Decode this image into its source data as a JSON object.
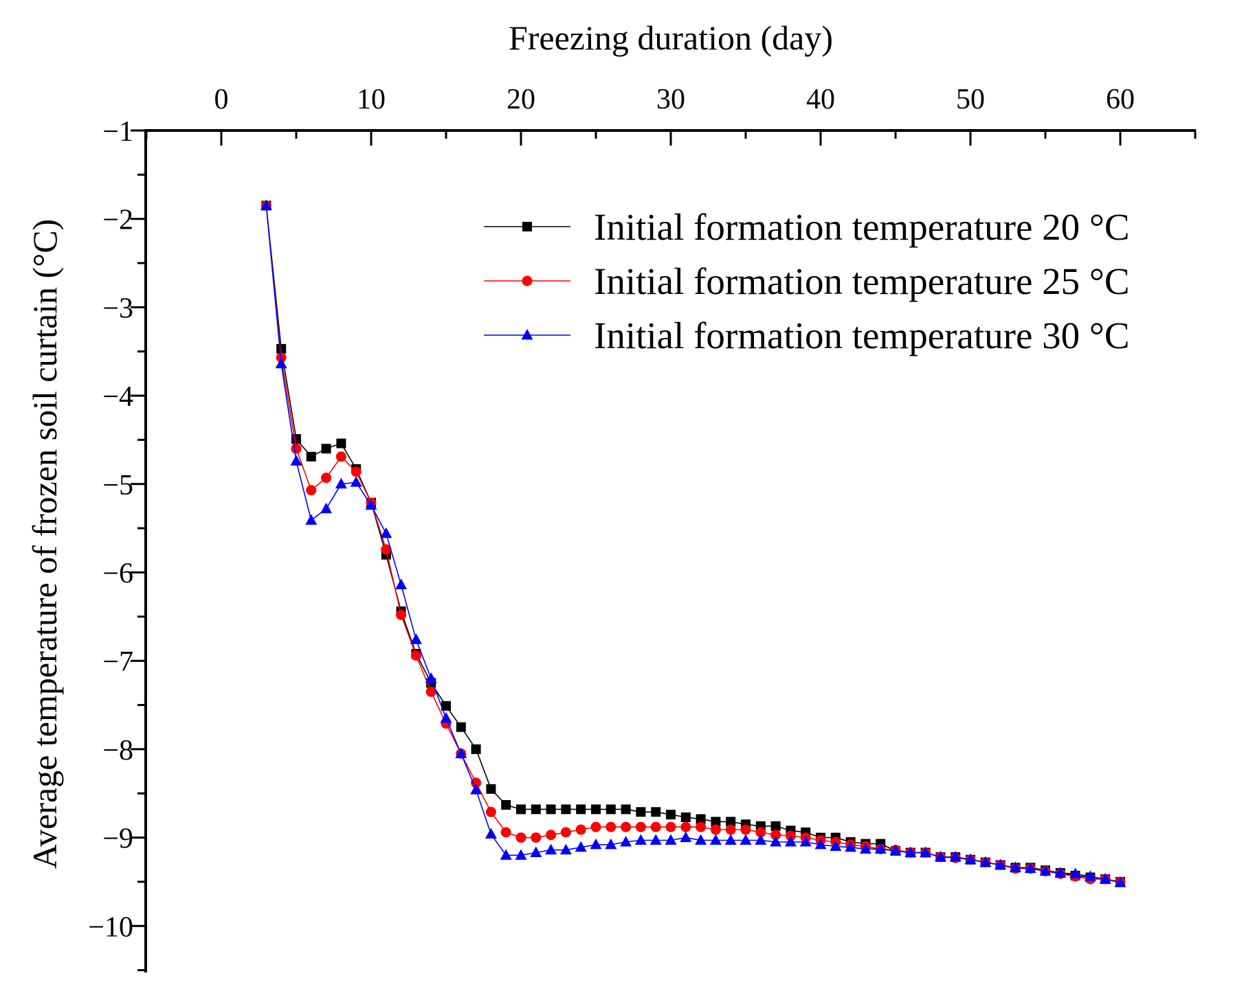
{
  "chart_data": {
    "type": "line",
    "title": "",
    "xlabel": "Freezing duration (day)",
    "ylabel": "Average temperature of frozen soil curtain (°C)",
    "x_axis_position": "top",
    "xlim": [
      -5,
      65
    ],
    "ylim": [
      -10.5,
      -1
    ],
    "xticks": [
      0,
      10,
      20,
      30,
      40,
      50,
      60
    ],
    "xtick_labels": [
      "0",
      "10",
      "20",
      "30",
      "40",
      "50",
      "60"
    ],
    "yticks": [
      -1,
      -2,
      -3,
      -4,
      -5,
      -6,
      -7,
      -8,
      -9,
      -10
    ],
    "ytick_labels": [
      "−1",
      "−2",
      "−3",
      "−4",
      "−5",
      "−6",
      "−7",
      "−8",
      "−9",
      "−10"
    ],
    "grid": false,
    "legend_position": "top-right",
    "x": [
      3,
      4,
      5,
      6,
      7,
      8,
      9,
      10,
      11,
      12,
      13,
      14,
      15,
      16,
      17,
      18,
      19,
      20,
      21,
      22,
      23,
      24,
      25,
      26,
      27,
      28,
      29,
      30,
      31,
      32,
      33,
      34,
      35,
      36,
      37,
      38,
      39,
      40,
      41,
      42,
      43,
      44,
      45,
      46,
      47,
      48,
      49,
      50,
      51,
      52,
      53,
      54,
      55,
      56,
      57,
      58,
      59,
      60
    ],
    "series": [
      {
        "name": "Initial formation temperature 20 °C",
        "color": "#000000",
        "marker": "square",
        "values": [
          -1.85,
          -3.47,
          -4.49,
          -4.69,
          -4.6,
          -4.54,
          -4.83,
          -5.21,
          -5.8,
          -6.44,
          -6.92,
          -7.25,
          -7.51,
          -7.75,
          -8.0,
          -8.45,
          -8.63,
          -8.68,
          -8.68,
          -8.68,
          -8.68,
          -8.68,
          -8.68,
          -8.68,
          -8.68,
          -8.71,
          -8.71,
          -8.74,
          -8.77,
          -8.79,
          -8.82,
          -8.82,
          -8.85,
          -8.87,
          -8.87,
          -8.92,
          -8.94,
          -9.0,
          -9.0,
          -9.05,
          -9.07,
          -9.07,
          -9.15,
          -9.17,
          -9.17,
          -9.22,
          -9.22,
          -9.25,
          -9.28,
          -9.31,
          -9.34,
          -9.34,
          -9.37,
          -9.4,
          -9.43,
          -9.45,
          -9.47,
          -9.5
        ]
      },
      {
        "name": "Initial formation temperature 25 °C",
        "color": "#ff0000",
        "marker": "circle",
        "values": [
          -1.85,
          -3.57,
          -4.6,
          -5.07,
          -4.93,
          -4.69,
          -4.86,
          -5.21,
          -5.74,
          -6.48,
          -6.94,
          -7.35,
          -7.71,
          -8.05,
          -8.38,
          -8.71,
          -8.94,
          -9.0,
          -9.0,
          -8.97,
          -8.94,
          -8.91,
          -8.88,
          -8.88,
          -8.88,
          -8.88,
          -8.88,
          -8.88,
          -8.88,
          -8.88,
          -8.91,
          -8.91,
          -8.91,
          -8.94,
          -8.97,
          -8.98,
          -9.0,
          -9.03,
          -9.05,
          -9.08,
          -9.1,
          -9.13,
          -9.14,
          -9.17,
          -9.17,
          -9.22,
          -9.23,
          -9.25,
          -9.28,
          -9.31,
          -9.35,
          -9.35,
          -9.38,
          -9.41,
          -9.44,
          -9.47,
          -9.47,
          -9.5
        ]
      },
      {
        "name": "Initial formation temperature 30 °C",
        "color": "#0000ff",
        "marker": "triangle",
        "values": [
          -1.85,
          -3.64,
          -4.74,
          -5.41,
          -5.28,
          -5.0,
          -4.98,
          -5.24,
          -5.56,
          -6.14,
          -6.76,
          -7.2,
          -7.65,
          -8.05,
          -8.46,
          -8.96,
          -9.2,
          -9.2,
          -9.17,
          -9.14,
          -9.14,
          -9.11,
          -9.08,
          -9.08,
          -9.05,
          -9.03,
          -9.03,
          -9.03,
          -9.0,
          -9.03,
          -9.03,
          -9.03,
          -9.03,
          -9.03,
          -9.05,
          -9.05,
          -9.05,
          -9.08,
          -9.1,
          -9.11,
          -9.13,
          -9.13,
          -9.15,
          -9.17,
          -9.17,
          -9.22,
          -9.22,
          -9.25,
          -9.28,
          -9.31,
          -9.34,
          -9.35,
          -9.38,
          -9.4,
          -9.41,
          -9.44,
          -9.47,
          -9.51
        ]
      }
    ]
  }
}
